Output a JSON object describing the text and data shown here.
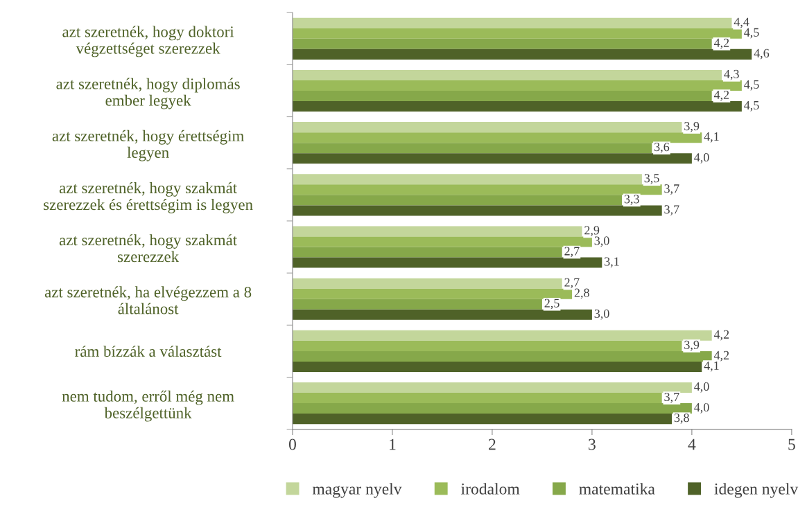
{
  "chart_data": {
    "type": "bar",
    "orientation": "horizontal",
    "categories": [
      "azt szeretnék, hogy doktori\nvégzettséget szerezzek",
      "azt szeretnék, hogy diplomás\nember legyek",
      "azt szeretnék, hogy érettségim\nlegyen",
      "azt szeretnék, hogy szakmát\nszerezzek és érettségim is legyen",
      "azt szeretnék, hogy szakmát\nszerezzek",
      "azt szeretnék, ha elvégezzem a 8\náltalánost",
      "rám bízzák a választást",
      "nem tudom, erről még nem\nbeszélgettünk"
    ],
    "series": [
      {
        "name": "magyar nyelv",
        "color": "#c3d69b",
        "values": [
          4.4,
          4.3,
          3.9,
          3.5,
          2.9,
          2.7,
          4.2,
          4.0
        ],
        "value_labels": [
          "4,4",
          "4,3",
          "3,9",
          "3,5",
          "2,9",
          "2,7",
          "4,2",
          "4,0"
        ]
      },
      {
        "name": "irodalom",
        "color": "#9bbb59",
        "values": [
          4.5,
          4.5,
          4.1,
          3.7,
          3.0,
          2.8,
          3.9,
          3.7
        ],
        "value_labels": [
          "4,5",
          "4,5",
          "4,1",
          "3,7",
          "3,0",
          "2,8",
          "3,9",
          "3,7"
        ]
      },
      {
        "name": "matematika",
        "color": "#86a84a",
        "values": [
          4.2,
          4.2,
          3.6,
          3.3,
          2.7,
          2.5,
          4.2,
          4.0
        ],
        "value_labels": [
          "4,2",
          "4,2",
          "3,6",
          "3,3",
          "2,7",
          "2,5",
          "4,2",
          "4,0"
        ]
      },
      {
        "name": "idegen nyelv",
        "color": "#4f6228",
        "values": [
          4.6,
          4.5,
          4.0,
          3.7,
          3.1,
          3.0,
          4.1,
          3.8
        ],
        "value_labels": [
          "4,6",
          "4,5",
          "4,0",
          "3,7",
          "3,1",
          "3,0",
          "4,1",
          "3,8"
        ]
      }
    ],
    "xlim": [
      0,
      5
    ],
    "xticks": [
      0,
      1,
      2,
      3,
      4,
      5
    ],
    "grid": false,
    "legend": "bottom"
  }
}
